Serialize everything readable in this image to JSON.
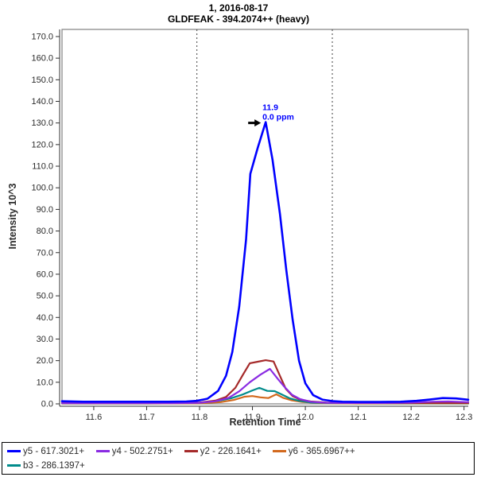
{
  "window": {
    "title_line1": "1, 2016-08-17",
    "title_line2": "GLDFEAK - 394.2074++ (heavy)"
  },
  "colors": {
    "plot_border": "#808080",
    "axis_line": "#303030",
    "tick_label": "#2b2b2b",
    "boundary_line": "#404040",
    "annotation_text": "#0000ff",
    "annotation_arrow": "#000000",
    "legend_border": "#000000"
  },
  "chart_data": {
    "type": "line",
    "title": "1, 2016-08-17",
    "subtitle": "GLDFEAK - 394.2074++ (heavy)",
    "xlabel": "Retention Time",
    "ylabel": "Intensity 10^3",
    "xlim": [
      11.54,
      12.308
    ],
    "ylim": [
      0,
      173.3
    ],
    "grid": false,
    "legend_position": "bottom",
    "x_ticks": [
      {
        "v": 11.6,
        "label": "11.6"
      },
      {
        "v": 11.7,
        "label": "11.7"
      },
      {
        "v": 11.8,
        "label": "11.8"
      },
      {
        "v": 11.9,
        "label": "11.9"
      },
      {
        "v": 12.0,
        "label": "12.0"
      },
      {
        "v": 12.1,
        "label": "12.1"
      },
      {
        "v": 12.2,
        "label": "12.2"
      },
      {
        "v": 12.3,
        "label": "12.3"
      }
    ],
    "y_ticks": [
      {
        "v": 0,
        "label": "0.0"
      },
      {
        "v": 10,
        "label": "10.0"
      },
      {
        "v": 20,
        "label": "20.0"
      },
      {
        "v": 30,
        "label": "30.0"
      },
      {
        "v": 40,
        "label": "40.0"
      },
      {
        "v": 50,
        "label": "50.0"
      },
      {
        "v": 60,
        "label": "60.0"
      },
      {
        "v": 70,
        "label": "70.0"
      },
      {
        "v": 80,
        "label": "80.0"
      },
      {
        "v": 90,
        "label": "90.0"
      },
      {
        "v": 100,
        "label": "100.0"
      },
      {
        "v": 110,
        "label": "110.0"
      },
      {
        "v": 120,
        "label": "120.0"
      },
      {
        "v": 130,
        "label": "130.0"
      },
      {
        "v": 140,
        "label": "140.0"
      },
      {
        "v": 150,
        "label": "150.0"
      },
      {
        "v": 160,
        "label": "160.0"
      },
      {
        "v": 170,
        "label": "170.0"
      }
    ],
    "peak_boundaries": [
      11.795,
      12.051
    ],
    "peak_annotation": {
      "x": 11.925,
      "y": 130.4,
      "lines": [
        "11.9",
        "0.0 ppm"
      ]
    },
    "series": [
      {
        "id": "y5",
        "name": "y5 - 617.3021+",
        "color": "#0000ff",
        "width": 2.6,
        "points": [
          [
            11.54,
            1.2
          ],
          [
            11.58,
            1.0
          ],
          [
            11.62,
            1.0
          ],
          [
            11.66,
            1.0
          ],
          [
            11.7,
            1.0
          ],
          [
            11.74,
            1.0
          ],
          [
            11.775,
            1.1
          ],
          [
            11.795,
            1.4
          ],
          [
            11.815,
            2.4
          ],
          [
            11.835,
            6.0
          ],
          [
            11.85,
            13.0
          ],
          [
            11.862,
            24.0
          ],
          [
            11.875,
            45.0
          ],
          [
            11.888,
            76.0
          ],
          [
            11.896,
            106.5
          ],
          [
            11.91,
            118.5
          ],
          [
            11.925,
            130.4
          ],
          [
            11.938,
            113.0
          ],
          [
            11.952,
            88.0
          ],
          [
            11.964,
            62.0
          ],
          [
            11.976,
            39.0
          ],
          [
            11.988,
            20.0
          ],
          [
            12.0,
            9.5
          ],
          [
            12.015,
            4.0
          ],
          [
            12.032,
            2.0
          ],
          [
            12.051,
            1.3
          ],
          [
            12.07,
            1.0
          ],
          [
            12.1,
            0.9
          ],
          [
            12.14,
            0.9
          ],
          [
            12.18,
            1.0
          ],
          [
            12.21,
            1.4
          ],
          [
            12.235,
            2.0
          ],
          [
            12.26,
            2.7
          ],
          [
            12.285,
            2.5
          ],
          [
            12.308,
            1.9
          ]
        ]
      },
      {
        "id": "y4",
        "name": "y4 - 502.2751+",
        "color": "#8a2be2",
        "width": 2.2,
        "points": [
          [
            11.54,
            0.3
          ],
          [
            11.65,
            0.3
          ],
          [
            11.75,
            0.3
          ],
          [
            11.8,
            0.5
          ],
          [
            11.83,
            1.2
          ],
          [
            11.855,
            2.8
          ],
          [
            11.875,
            5.8
          ],
          [
            11.895,
            10.0
          ],
          [
            11.915,
            13.5
          ],
          [
            11.933,
            16.2
          ],
          [
            11.948,
            11.5
          ],
          [
            11.96,
            8.0
          ],
          [
            11.975,
            4.2
          ],
          [
            11.99,
            2.2
          ],
          [
            12.01,
            1.0
          ],
          [
            12.04,
            0.5
          ],
          [
            12.08,
            0.4
          ],
          [
            12.15,
            0.4
          ],
          [
            12.2,
            0.6
          ],
          [
            12.24,
            1.0
          ],
          [
            12.27,
            1.1
          ],
          [
            12.308,
            0.8
          ]
        ]
      },
      {
        "id": "y2",
        "name": "y2 - 226.1641+",
        "color": "#a52a2a",
        "width": 2.2,
        "points": [
          [
            11.54,
            0.4
          ],
          [
            11.65,
            0.4
          ],
          [
            11.75,
            0.4
          ],
          [
            11.8,
            0.6
          ],
          [
            11.83,
            1.5
          ],
          [
            11.85,
            3.2
          ],
          [
            11.868,
            7.5
          ],
          [
            11.882,
            13.5
          ],
          [
            11.895,
            18.8
          ],
          [
            11.91,
            19.5
          ],
          [
            11.925,
            20.2
          ],
          [
            11.94,
            19.6
          ],
          [
            11.952,
            13.0
          ],
          [
            11.963,
            7.0
          ],
          [
            11.976,
            3.6
          ],
          [
            11.99,
            2.0
          ],
          [
            12.01,
            1.1
          ],
          [
            12.04,
            0.6
          ],
          [
            12.08,
            0.4
          ],
          [
            12.2,
            0.4
          ],
          [
            12.308,
            0.4
          ]
        ]
      },
      {
        "id": "y6",
        "name": "y6 - 365.6967++",
        "color": "#d2691e",
        "width": 2.2,
        "points": [
          [
            11.54,
            0.2
          ],
          [
            11.7,
            0.2
          ],
          [
            11.8,
            0.3
          ],
          [
            11.84,
            0.8
          ],
          [
            11.865,
            1.8
          ],
          [
            11.885,
            3.3
          ],
          [
            11.9,
            3.6
          ],
          [
            11.915,
            3.0
          ],
          [
            11.93,
            2.7
          ],
          [
            11.945,
            4.4
          ],
          [
            11.958,
            2.8
          ],
          [
            11.975,
            1.6
          ],
          [
            11.995,
            0.9
          ],
          [
            12.03,
            0.4
          ],
          [
            12.1,
            0.2
          ],
          [
            12.308,
            0.2
          ]
        ]
      },
      {
        "id": "b3",
        "name": "b3 - 286.1397+",
        "color": "#008b8b",
        "width": 2.2,
        "points": [
          [
            11.54,
            0.3
          ],
          [
            11.7,
            0.3
          ],
          [
            11.8,
            0.6
          ],
          [
            11.835,
            1.4
          ],
          [
            11.86,
            2.6
          ],
          [
            11.88,
            4.2
          ],
          [
            11.9,
            6.2
          ],
          [
            11.913,
            7.4
          ],
          [
            11.928,
            6.0
          ],
          [
            11.942,
            5.9
          ],
          [
            11.955,
            4.4
          ],
          [
            11.97,
            2.6
          ],
          [
            11.988,
            1.4
          ],
          [
            12.01,
            0.7
          ],
          [
            12.05,
            0.4
          ],
          [
            12.2,
            0.3
          ],
          [
            12.308,
            0.3
          ]
        ]
      }
    ],
    "draw_order": [
      "y6",
      "b3",
      "y2",
      "y4",
      "y5"
    ]
  }
}
